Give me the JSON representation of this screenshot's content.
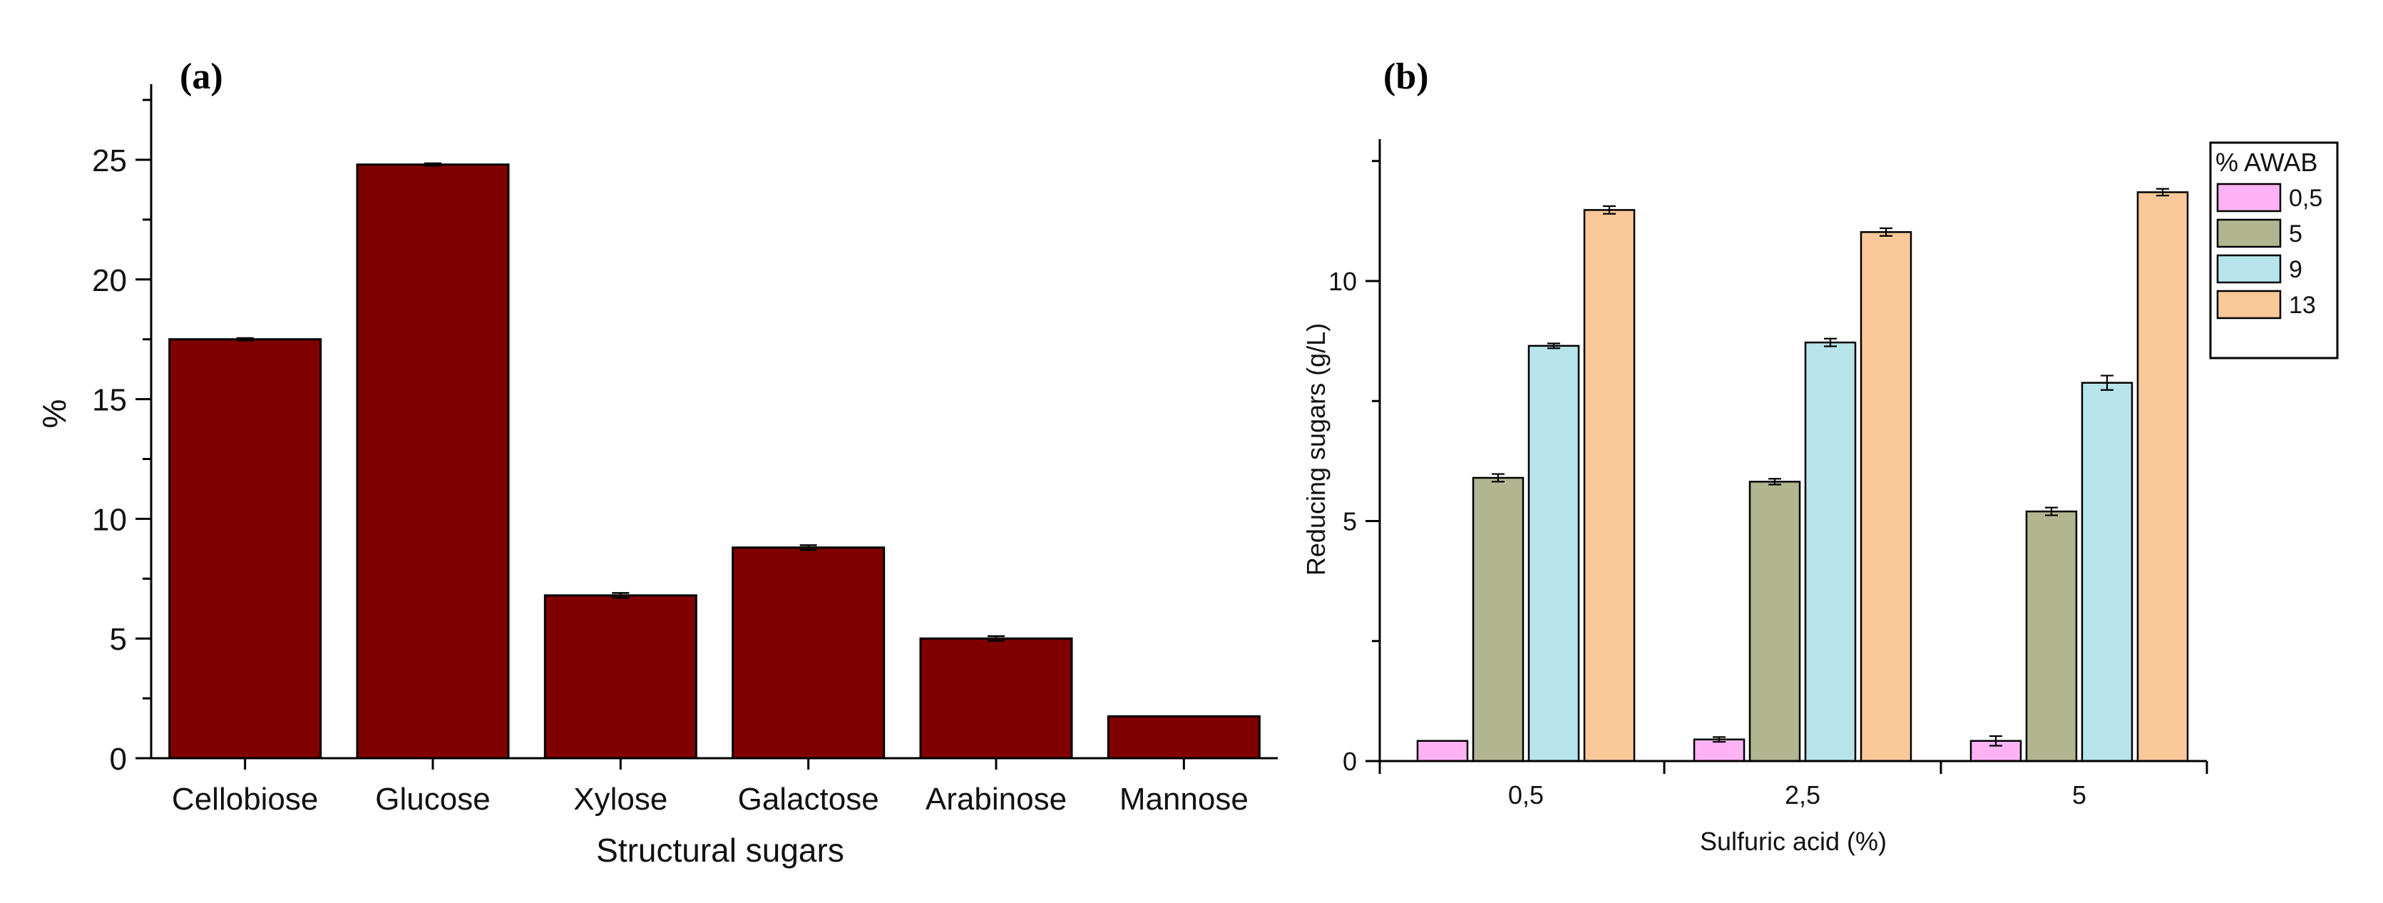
{
  "chart_data": [
    {
      "panel_label": "(a)",
      "type": "bar",
      "title": "",
      "xlabel": "Structural sugars",
      "ylabel": "%",
      "categories": [
        "Cellobiose",
        "Glucose",
        "Xylose",
        "Galactose",
        "Arabinose",
        "Mannose"
      ],
      "values": [
        17.5,
        24.8,
        6.8,
        8.8,
        5.0,
        1.75
      ],
      "errors": [
        0.05,
        0.05,
        0.1,
        0.1,
        0.1,
        0.0
      ],
      "ylim": [
        0,
        28
      ],
      "yticks": [
        "0",
        "5",
        "10",
        "15",
        "20",
        "25"
      ],
      "ytick_values": [
        0,
        5,
        10,
        15,
        20,
        25
      ],
      "bar_color": "#800000",
      "grid": false,
      "legend": "none"
    },
    {
      "panel_label": "(b)",
      "type": "bar",
      "title": "",
      "xlabel": "Sulfuric acid (%)",
      "ylabel": "Reducing sugars (g/L)",
      "categories": [
        "0,5",
        "2,5",
        "5"
      ],
      "ylim": [
        0,
        13
      ],
      "yticks": [
        "0",
        "5",
        "10"
      ],
      "ytick_values": [
        0,
        5,
        10
      ],
      "legend_title": "% AWAB",
      "legend_position": "top-right",
      "grid": false,
      "series": [
        {
          "name": "0,5",
          "color": "#ffb3f5",
          "values": [
            0.42,
            0.45,
            0.42
          ],
          "errors": [
            0.0,
            0.05,
            0.1
          ]
        },
        {
          "name": "5",
          "color": "#b2b690",
          "values": [
            5.9,
            5.82,
            5.2
          ],
          "errors": [
            0.08,
            0.06,
            0.08
          ]
        },
        {
          "name": "9",
          "color": "#b6e4ea",
          "values": [
            8.65,
            8.72,
            7.88
          ],
          "errors": [
            0.05,
            0.08,
            0.15
          ]
        },
        {
          "name": "13",
          "color": "#fbc89a",
          "values": [
            11.48,
            11.02,
            11.85
          ],
          "errors": [
            0.08,
            0.08,
            0.07
          ]
        }
      ]
    }
  ]
}
